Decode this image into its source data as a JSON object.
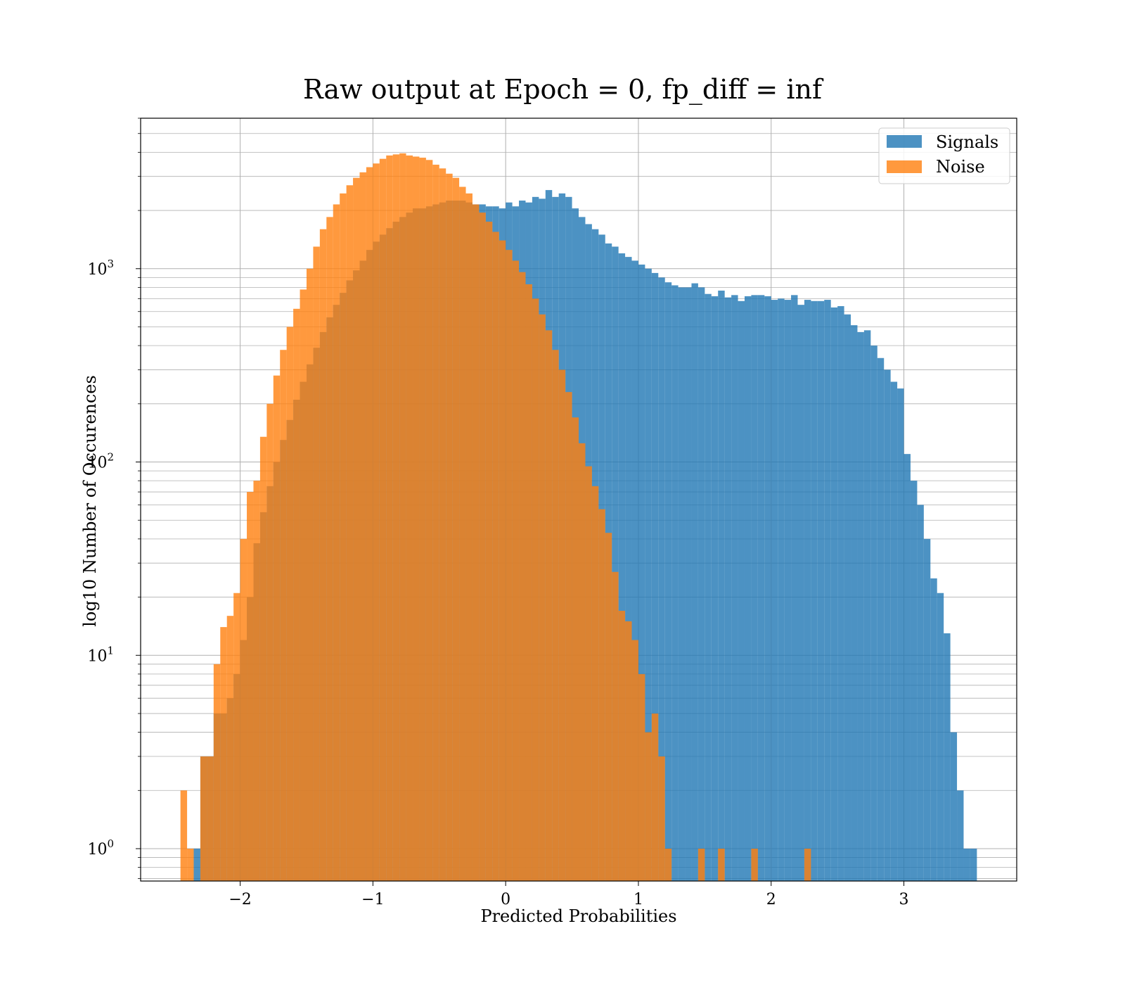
{
  "chart_data": {
    "type": "bar",
    "histogram": true,
    "title": "Raw output at Epoch = 0, fp_diff = inf",
    "xlabel": "Predicted Probabilities",
    "ylabel": "log10 Number of Occurences",
    "yscale": "log",
    "xlim": [
      -2.75,
      3.85
    ],
    "ylim": [
      0.68,
      6000
    ],
    "grid": true,
    "legend_position": "top-right",
    "x_ticks": [
      {
        "value": -2,
        "label": "−2"
      },
      {
        "value": -1,
        "label": "−1"
      },
      {
        "value": 0,
        "label": "0"
      },
      {
        "value": 1,
        "label": "1"
      },
      {
        "value": 2,
        "label": "2"
      },
      {
        "value": 3,
        "label": "3"
      }
    ],
    "y_ticks": [
      {
        "value": 1,
        "base": "10",
        "exp": "0"
      },
      {
        "value": 10,
        "base": "10",
        "exp": "1"
      },
      {
        "value": 100,
        "base": "10",
        "exp": "2"
      },
      {
        "value": 1000,
        "base": "10",
        "exp": "3"
      }
    ],
    "series": [
      {
        "name": "Signals",
        "color": "#1f77b4",
        "opacity": 0.8,
        "bins": [
          [
            -2.35,
            -2.3,
            1
          ],
          [
            -2.3,
            -2.25,
            3
          ],
          [
            -2.25,
            -2.2,
            3
          ],
          [
            -2.2,
            -2.15,
            5
          ],
          [
            -2.15,
            -2.1,
            5
          ],
          [
            -2.1,
            -2.05,
            6
          ],
          [
            -2.05,
            -2.0,
            8
          ],
          [
            -2.0,
            -1.95,
            12
          ],
          [
            -1.95,
            -1.9,
            20
          ],
          [
            -1.9,
            -1.85,
            38
          ],
          [
            -1.85,
            -1.8,
            55
          ],
          [
            -1.8,
            -1.75,
            75
          ],
          [
            -1.75,
            -1.7,
            100
          ],
          [
            -1.7,
            -1.65,
            130
          ],
          [
            -1.65,
            -1.6,
            165
          ],
          [
            -1.6,
            -1.55,
            210
          ],
          [
            -1.55,
            -1.5,
            260
          ],
          [
            -1.5,
            -1.45,
            320
          ],
          [
            -1.45,
            -1.4,
            390
          ],
          [
            -1.4,
            -1.35,
            470
          ],
          [
            -1.35,
            -1.3,
            560
          ],
          [
            -1.3,
            -1.25,
            650
          ],
          [
            -1.25,
            -1.2,
            750
          ],
          [
            -1.2,
            -1.15,
            870
          ],
          [
            -1.15,
            -1.1,
            980
          ],
          [
            -1.1,
            -1.05,
            1100
          ],
          [
            -1.05,
            -1.0,
            1250
          ],
          [
            -1.0,
            -0.95,
            1380
          ],
          [
            -0.95,
            -0.9,
            1500
          ],
          [
            -0.9,
            -0.85,
            1620
          ],
          [
            -0.85,
            -0.8,
            1750
          ],
          [
            -0.8,
            -0.75,
            1850
          ],
          [
            -0.75,
            -0.7,
            1950
          ],
          [
            -0.7,
            -0.65,
            2050
          ],
          [
            -0.65,
            -0.6,
            2050
          ],
          [
            -0.6,
            -0.55,
            2100
          ],
          [
            -0.55,
            -0.5,
            2150
          ],
          [
            -0.5,
            -0.45,
            2200
          ],
          [
            -0.45,
            -0.4,
            2250
          ],
          [
            -0.4,
            -0.35,
            2250
          ],
          [
            -0.35,
            -0.3,
            2250
          ],
          [
            -0.3,
            -0.25,
            2200
          ],
          [
            -0.25,
            -0.2,
            2150
          ],
          [
            -0.2,
            -0.15,
            2150
          ],
          [
            -0.15,
            -0.1,
            2100
          ],
          [
            -0.1,
            -0.05,
            2100
          ],
          [
            -0.05,
            0.0,
            2050
          ],
          [
            0.0,
            0.05,
            2200
          ],
          [
            0.05,
            0.1,
            2100
          ],
          [
            0.1,
            0.15,
            2250
          ],
          [
            0.15,
            0.2,
            2200
          ],
          [
            0.2,
            0.25,
            2350
          ],
          [
            0.25,
            0.3,
            2300
          ],
          [
            0.3,
            0.35,
            2550
          ],
          [
            0.35,
            0.4,
            2350
          ],
          [
            0.4,
            0.45,
            2450
          ],
          [
            0.45,
            0.5,
            2350
          ],
          [
            0.5,
            0.55,
            2050
          ],
          [
            0.55,
            0.6,
            1850
          ],
          [
            0.6,
            0.65,
            1700
          ],
          [
            0.65,
            0.7,
            1600
          ],
          [
            0.7,
            0.75,
            1500
          ],
          [
            0.75,
            0.8,
            1350
          ],
          [
            0.8,
            0.85,
            1300
          ],
          [
            0.85,
            0.9,
            1200
          ],
          [
            0.9,
            0.95,
            1150
          ],
          [
            0.95,
            1.0,
            1100
          ],
          [
            1.0,
            1.05,
            1050
          ],
          [
            1.05,
            1.1,
            1000
          ],
          [
            1.1,
            1.15,
            950
          ],
          [
            1.15,
            1.2,
            900
          ],
          [
            1.2,
            1.25,
            850
          ],
          [
            1.25,
            1.3,
            820
          ],
          [
            1.3,
            1.35,
            800
          ],
          [
            1.35,
            1.4,
            800
          ],
          [
            1.4,
            1.45,
            840
          ],
          [
            1.45,
            1.5,
            800
          ],
          [
            1.5,
            1.55,
            740
          ],
          [
            1.55,
            1.6,
            720
          ],
          [
            1.6,
            1.65,
            770
          ],
          [
            1.65,
            1.7,
            710
          ],
          [
            1.7,
            1.75,
            730
          ],
          [
            1.75,
            1.8,
            680
          ],
          [
            1.8,
            1.85,
            720
          ],
          [
            1.85,
            1.9,
            730
          ],
          [
            1.9,
            1.95,
            730
          ],
          [
            1.95,
            2.0,
            720
          ],
          [
            2.0,
            2.05,
            690
          ],
          [
            2.05,
            2.1,
            700
          ],
          [
            2.1,
            2.15,
            690
          ],
          [
            2.15,
            2.2,
            730
          ],
          [
            2.2,
            2.25,
            650
          ],
          [
            2.25,
            2.3,
            690
          ],
          [
            2.3,
            2.35,
            680
          ],
          [
            2.35,
            2.4,
            680
          ],
          [
            2.4,
            2.45,
            690
          ],
          [
            2.45,
            2.5,
            630
          ],
          [
            2.5,
            2.55,
            640
          ],
          [
            2.55,
            2.6,
            580
          ],
          [
            2.6,
            2.65,
            510
          ],
          [
            2.65,
            2.7,
            470
          ],
          [
            2.7,
            2.75,
            480
          ],
          [
            2.75,
            2.8,
            400
          ],
          [
            2.8,
            2.85,
            345
          ],
          [
            2.85,
            2.9,
            300
          ],
          [
            2.9,
            2.95,
            260
          ],
          [
            2.95,
            3.0,
            240
          ],
          [
            3.0,
            3.05,
            110
          ],
          [
            3.05,
            3.1,
            80
          ],
          [
            3.1,
            3.15,
            60
          ],
          [
            3.15,
            3.2,
            40
          ],
          [
            3.2,
            3.25,
            25
          ],
          [
            3.25,
            3.3,
            21
          ],
          [
            3.3,
            3.35,
            13
          ],
          [
            3.35,
            3.4,
            4
          ],
          [
            3.4,
            3.45,
            2
          ],
          [
            3.45,
            3.5,
            1
          ],
          [
            3.5,
            3.55,
            1
          ]
        ]
      },
      {
        "name": "Noise",
        "color": "#ff7f0e",
        "opacity": 0.8,
        "bins": [
          [
            -2.45,
            -2.4,
            2
          ],
          [
            -2.4,
            -2.35,
            1
          ],
          [
            -2.3,
            -2.25,
            3
          ],
          [
            -2.25,
            -2.2,
            3
          ],
          [
            -2.2,
            -2.15,
            9
          ],
          [
            -2.15,
            -2.1,
            14
          ],
          [
            -2.1,
            -2.05,
            16
          ],
          [
            -2.05,
            -2.0,
            21
          ],
          [
            -2.0,
            -1.95,
            40
          ],
          [
            -1.95,
            -1.9,
            70
          ],
          [
            -1.9,
            -1.85,
            80
          ],
          [
            -1.85,
            -1.8,
            135
          ],
          [
            -1.8,
            -1.75,
            200
          ],
          [
            -1.75,
            -1.7,
            280
          ],
          [
            -1.7,
            -1.65,
            380
          ],
          [
            -1.65,
            -1.6,
            500
          ],
          [
            -1.6,
            -1.55,
            620
          ],
          [
            -1.55,
            -1.5,
            780
          ],
          [
            -1.5,
            -1.45,
            1000
          ],
          [
            -1.45,
            -1.4,
            1300
          ],
          [
            -1.4,
            -1.35,
            1600
          ],
          [
            -1.35,
            -1.3,
            1850
          ],
          [
            -1.3,
            -1.25,
            2150
          ],
          [
            -1.25,
            -1.2,
            2450
          ],
          [
            -1.2,
            -1.15,
            2700
          ],
          [
            -1.15,
            -1.1,
            2950
          ],
          [
            -1.1,
            -1.05,
            3150
          ],
          [
            -1.05,
            -1.0,
            3350
          ],
          [
            -1.0,
            -0.95,
            3500
          ],
          [
            -0.95,
            -0.9,
            3700
          ],
          [
            -0.9,
            -0.85,
            3850
          ],
          [
            -0.85,
            -0.8,
            3900
          ],
          [
            -0.8,
            -0.75,
            3950
          ],
          [
            -0.75,
            -0.7,
            3850
          ],
          [
            -0.7,
            -0.65,
            3800
          ],
          [
            -0.65,
            -0.6,
            3750
          ],
          [
            -0.6,
            -0.55,
            3650
          ],
          [
            -0.55,
            -0.5,
            3450
          ],
          [
            -0.5,
            -0.45,
            3300
          ],
          [
            -0.45,
            -0.4,
            3100
          ],
          [
            -0.4,
            -0.35,
            2950
          ],
          [
            -0.35,
            -0.3,
            2650
          ],
          [
            -0.3,
            -0.25,
            2450
          ],
          [
            -0.25,
            -0.2,
            2150
          ],
          [
            -0.2,
            -0.15,
            1950
          ],
          [
            -0.15,
            -0.1,
            1750
          ],
          [
            -0.1,
            -0.05,
            1550
          ],
          [
            -0.05,
            0.0,
            1400
          ],
          [
            0.0,
            0.05,
            1250
          ],
          [
            0.05,
            0.1,
            1100
          ],
          [
            0.1,
            0.15,
            960
          ],
          [
            0.15,
            0.2,
            830
          ],
          [
            0.2,
            0.25,
            700
          ],
          [
            0.25,
            0.3,
            580
          ],
          [
            0.3,
            0.35,
            480
          ],
          [
            0.35,
            0.4,
            380
          ],
          [
            0.4,
            0.45,
            300
          ],
          [
            0.45,
            0.5,
            230
          ],
          [
            0.5,
            0.55,
            170
          ],
          [
            0.55,
            0.6,
            125
          ],
          [
            0.6,
            0.65,
            95
          ],
          [
            0.65,
            0.7,
            75
          ],
          [
            0.7,
            0.75,
            57
          ],
          [
            0.75,
            0.8,
            43
          ],
          [
            0.8,
            0.85,
            27
          ],
          [
            0.85,
            0.9,
            17
          ],
          [
            0.9,
            0.95,
            15
          ],
          [
            0.95,
            1.0,
            12
          ],
          [
            1.0,
            1.05,
            8
          ],
          [
            1.05,
            1.1,
            4
          ],
          [
            1.1,
            1.15,
            5
          ],
          [
            1.15,
            1.2,
            3
          ],
          [
            1.2,
            1.25,
            1
          ],
          [
            1.45,
            1.5,
            1
          ],
          [
            1.6,
            1.65,
            1
          ],
          [
            1.85,
            1.9,
            1
          ],
          [
            2.25,
            2.3,
            1
          ]
        ]
      }
    ]
  }
}
